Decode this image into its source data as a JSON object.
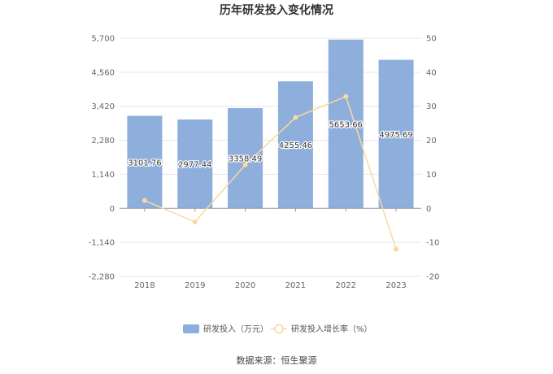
{
  "chart_data": {
    "type": "bar",
    "title": "历年研发投入变化情况",
    "categories": [
      "2018",
      "2019",
      "2020",
      "2021",
      "2022",
      "2023"
    ],
    "series": [
      {
        "name": "研发投入（万元）",
        "type": "bar",
        "axis": "left",
        "color": "#8eaedb",
        "values": [
          3101.76,
          2977.44,
          3358.49,
          4255.46,
          5653.66,
          4975.69
        ],
        "labels": [
          "3101.76",
          "2977.44",
          "3358.49",
          "4255.46",
          "5653.66",
          "4975.69"
        ]
      },
      {
        "name": "研发投入增长率（%）",
        "type": "line",
        "axis": "right",
        "color": "#f8d9a0",
        "values": [
          2.3,
          -4.0,
          12.8,
          26.7,
          32.9,
          -12.0
        ]
      }
    ],
    "y_left": {
      "ylim": [
        -2280,
        5700
      ],
      "ticks": [
        -2280,
        -1140,
        0,
        1140,
        2280,
        3420,
        4560,
        5700
      ],
      "tick_labels": [
        "-2,280",
        "-1,140",
        "0",
        "1,140",
        "2,280",
        "3,420",
        "4,560",
        "5,700"
      ]
    },
    "y_right": {
      "ylim": [
        -20,
        50
      ],
      "ticks": [
        -20,
        -10,
        0,
        10,
        20,
        30,
        40,
        50
      ],
      "tick_labels": [
        "-20",
        "-10",
        "0",
        "10",
        "20",
        "30",
        "40",
        "50"
      ]
    },
    "grid": true,
    "legend_position": "bottom",
    "source": "数据来源：恒生聚源"
  }
}
